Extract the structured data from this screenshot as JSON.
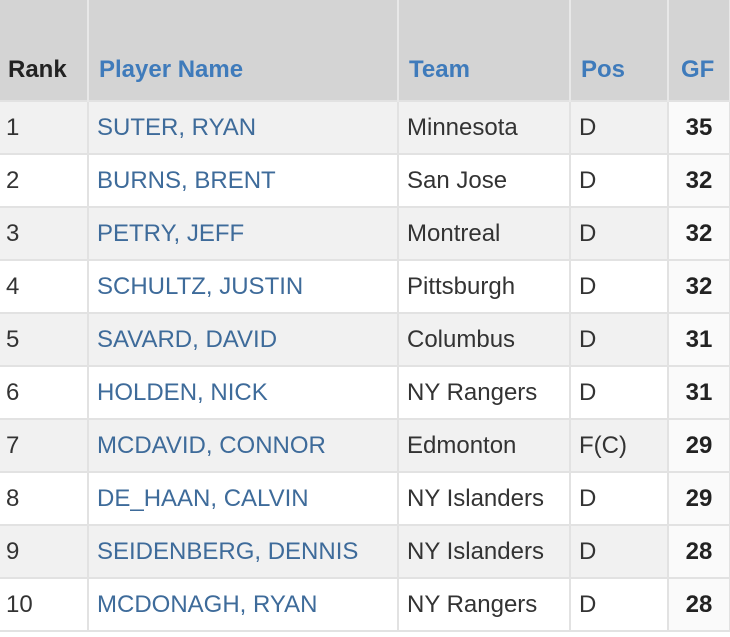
{
  "table": {
    "header": [
      "Rank",
      "Player Name",
      "Team",
      "Pos",
      "GF"
    ],
    "rows": [
      [
        1,
        "SUTER, RYAN",
        "Minnesota",
        "D",
        35
      ],
      [
        2,
        "BURNS, BRENT",
        "San Jose",
        "D",
        32
      ],
      [
        3,
        "PETRY, JEFF",
        "Montreal",
        "D",
        32
      ],
      [
        4,
        "SCHULTZ, JUSTIN",
        "Pittsburgh",
        "D",
        32
      ],
      [
        5,
        "SAVARD, DAVID",
        "Columbus",
        "D",
        31
      ],
      [
        6,
        "HOLDEN, NICK",
        "NY Rangers",
        "D",
        31
      ],
      [
        7,
        "MCDAVID, CONNOR",
        "Edmonton",
        "F(C)",
        29
      ],
      [
        8,
        "DE_HAAN, CALVIN",
        "NY Islanders",
        "D",
        29
      ],
      [
        9,
        "SEIDENBERG, DENNIS",
        "NY Islanders",
        "D",
        28
      ],
      [
        10,
        "MCDONAGH, RYAN",
        "NY Rangers",
        "D",
        28
      ]
    ]
  }
}
